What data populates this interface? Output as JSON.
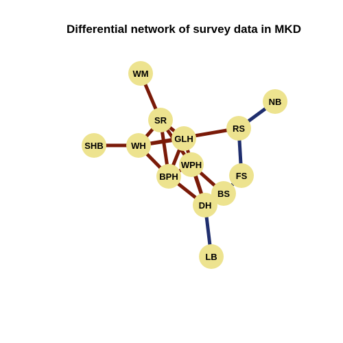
{
  "title": "Differential network of survey data in MKD",
  "colors": {
    "node_fill": "#EDE38F",
    "edge_positive": "#7A1A08",
    "edge_negative": "#1F2E6E",
    "label": "#000000",
    "background": "#FFFFFF"
  },
  "nodes": [
    {
      "id": "WM",
      "label": "WM"
    },
    {
      "id": "NB",
      "label": "NB"
    },
    {
      "id": "SR",
      "label": "SR"
    },
    {
      "id": "RS",
      "label": "RS"
    },
    {
      "id": "GLH",
      "label": "GLH"
    },
    {
      "id": "SHB",
      "label": "SHB"
    },
    {
      "id": "WH",
      "label": "WH"
    },
    {
      "id": "WPH",
      "label": "WPH"
    },
    {
      "id": "BPH",
      "label": "BPH"
    },
    {
      "id": "FS",
      "label": "FS"
    },
    {
      "id": "BS",
      "label": "BS"
    },
    {
      "id": "DH",
      "label": "DH"
    },
    {
      "id": "LB",
      "label": "LB"
    }
  ],
  "edges": [
    {
      "source": "WM",
      "target": "SR",
      "sign": "positive"
    },
    {
      "source": "SR",
      "target": "WH",
      "sign": "positive"
    },
    {
      "source": "SR",
      "target": "GLH",
      "sign": "positive"
    },
    {
      "source": "SR",
      "target": "WPH",
      "sign": "positive"
    },
    {
      "source": "SR",
      "target": "BPH",
      "sign": "positive"
    },
    {
      "source": "SHB",
      "target": "WH",
      "sign": "positive"
    },
    {
      "source": "WH",
      "target": "GLH",
      "sign": "positive"
    },
    {
      "source": "WH",
      "target": "RS",
      "sign": "positive"
    },
    {
      "source": "WH",
      "target": "BPH",
      "sign": "positive"
    },
    {
      "source": "GLH",
      "target": "BPH",
      "sign": "positive"
    },
    {
      "source": "GLH",
      "target": "DH",
      "sign": "positive"
    },
    {
      "source": "BPH",
      "target": "WPH",
      "sign": "positive"
    },
    {
      "source": "BPH",
      "target": "DH",
      "sign": "positive"
    },
    {
      "source": "WPH",
      "target": "DH",
      "sign": "positive"
    },
    {
      "source": "WPH",
      "target": "BS",
      "sign": "positive"
    },
    {
      "source": "NB",
      "target": "RS",
      "sign": "negative"
    },
    {
      "source": "RS",
      "target": "FS",
      "sign": "negative"
    },
    {
      "source": "FS",
      "target": "BS",
      "sign": "negative"
    },
    {
      "source": "DH",
      "target": "LB",
      "sign": "negative"
    }
  ]
}
